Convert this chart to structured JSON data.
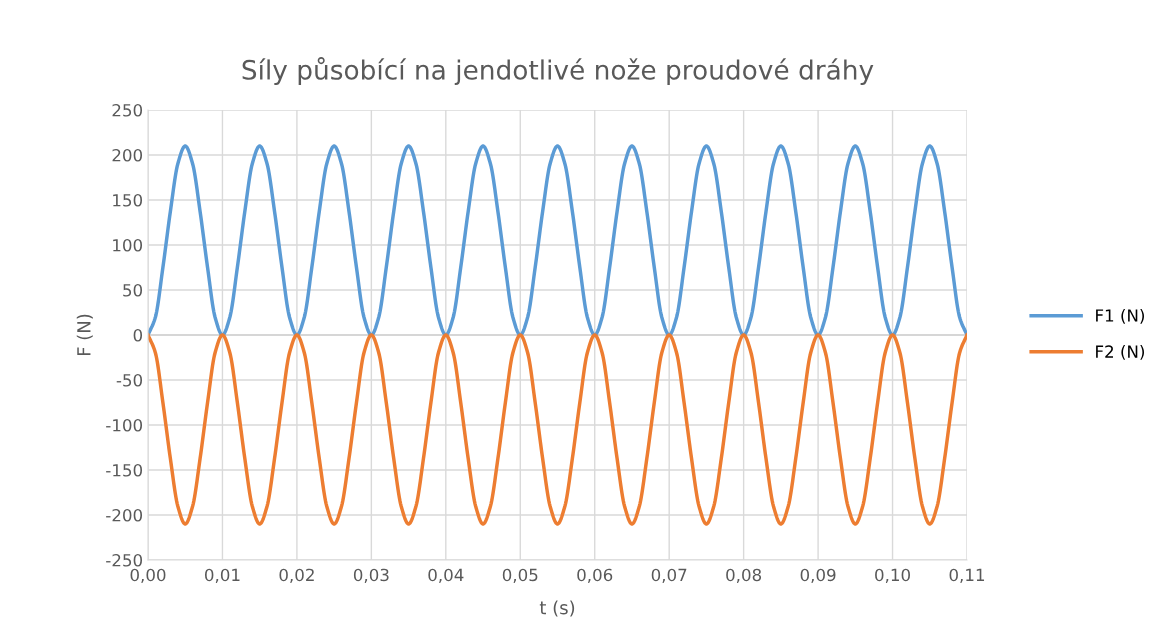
{
  "chart_data": {
    "type": "line",
    "title": "Síly působící na jendotlivé nože proudové dráhy",
    "xlabel": "t (s)",
    "ylabel": "F (N)",
    "x": [
      0,
      0.001,
      0.002,
      0.003,
      0.004,
      0.005,
      0.006,
      0.007,
      0.008,
      0.009,
      0.01,
      0.011,
      0.012,
      0.013,
      0.014,
      0.015,
      0.016,
      0.017,
      0.018,
      0.019,
      0.02,
      0.021,
      0.022,
      0.023,
      0.024,
      0.025,
      0.026,
      0.027,
      0.028,
      0.029,
      0.03,
      0.031,
      0.032,
      0.033,
      0.034,
      0.035,
      0.036,
      0.037,
      0.038,
      0.039,
      0.04,
      0.041,
      0.042,
      0.043,
      0.044,
      0.045,
      0.046,
      0.047,
      0.048,
      0.049,
      0.05,
      0.051,
      0.052,
      0.053,
      0.054,
      0.055,
      0.056,
      0.057,
      0.058,
      0.059,
      0.06,
      0.061,
      0.062,
      0.063,
      0.064,
      0.065,
      0.066,
      0.067,
      0.068,
      0.069,
      0.07,
      0.071,
      0.072,
      0.073,
      0.074,
      0.075,
      0.076,
      0.077,
      0.078,
      0.079,
      0.08,
      0.081,
      0.082,
      0.083,
      0.084,
      0.085,
      0.086,
      0.087,
      0.088,
      0.089,
      0.09,
      0.091,
      0.092,
      0.093,
      0.094,
      0.095,
      0.096,
      0.097,
      0.098,
      0.099,
      0.1,
      0.101,
      0.102,
      0.103,
      0.104,
      0.105,
      0.106,
      0.107,
      0.108,
      0.109,
      0.11
    ],
    "series": [
      {
        "name": "F1 (N)",
        "color": "#5b9bd5",
        "values": [
          0,
          20,
          75,
          137,
          190,
          210,
          190,
          137,
          75,
          20,
          0,
          20,
          75,
          137,
          190,
          210,
          190,
          137,
          75,
          20,
          0,
          20,
          75,
          137,
          190,
          210,
          190,
          137,
          75,
          20,
          0,
          20,
          75,
          137,
          190,
          210,
          190,
          137,
          75,
          20,
          0,
          20,
          75,
          137,
          190,
          210,
          190,
          137,
          75,
          20,
          0,
          20,
          75,
          137,
          190,
          210,
          190,
          137,
          75,
          20,
          0,
          20,
          75,
          137,
          190,
          210,
          190,
          137,
          75,
          20,
          0,
          20,
          75,
          137,
          190,
          210,
          190,
          137,
          75,
          20,
          0,
          20,
          75,
          137,
          190,
          210,
          190,
          137,
          75,
          20,
          0,
          20,
          75,
          137,
          190,
          210,
          190,
          137,
          75,
          20,
          0,
          20,
          75,
          137,
          190,
          210,
          190,
          137,
          75,
          20,
          0
        ]
      },
      {
        "name": "F2 (N)",
        "color": "#ed7d31",
        "values": [
          0,
          -20,
          -75,
          -137,
          -190,
          -210,
          -190,
          -137,
          -75,
          -20,
          0,
          -20,
          -75,
          -137,
          -190,
          -210,
          -190,
          -137,
          -75,
          -20,
          0,
          -20,
          -75,
          -137,
          -190,
          -210,
          -190,
          -137,
          -75,
          -20,
          0,
          -20,
          -75,
          -137,
          -190,
          -210,
          -190,
          -137,
          -75,
          -20,
          0,
          -20,
          -75,
          -137,
          -190,
          -210,
          -190,
          -137,
          -75,
          -20,
          0,
          -20,
          -75,
          -137,
          -190,
          -210,
          -190,
          -137,
          -75,
          -20,
          0,
          -20,
          -75,
          -137,
          -190,
          -210,
          -190,
          -137,
          -75,
          -20,
          0,
          -20,
          -75,
          -137,
          -190,
          -210,
          -190,
          -137,
          -75,
          -20,
          0,
          -20,
          -75,
          -137,
          -190,
          -210,
          -190,
          -137,
          -75,
          -20,
          0,
          -20,
          -75,
          -137,
          -190,
          -210,
          -190,
          -137,
          -75,
          -20,
          0,
          -20,
          -75,
          -137,
          -190,
          -210,
          -190,
          -137,
          -75,
          -20,
          0
        ]
      }
    ],
    "xlim": [
      0,
      0.11
    ],
    "xticks": [
      {
        "value": 0,
        "label": "0,00"
      },
      {
        "value": 0.01,
        "label": "0,01"
      },
      {
        "value": 0.02,
        "label": "0,02"
      },
      {
        "value": 0.03,
        "label": "0,03"
      },
      {
        "value": 0.04,
        "label": "0,04"
      },
      {
        "value": 0.05,
        "label": "0,05"
      },
      {
        "value": 0.06,
        "label": "0,06"
      },
      {
        "value": 0.07,
        "label": "0,07"
      },
      {
        "value": 0.08,
        "label": "0,08"
      },
      {
        "value": 0.09,
        "label": "0,09"
      },
      {
        "value": 0.1,
        "label": "0,10"
      },
      {
        "value": 0.11,
        "label": "0,11"
      }
    ],
    "ylim": [
      -250,
      250
    ],
    "yticks": [
      -250,
      -200,
      -150,
      -100,
      -50,
      0,
      50,
      100,
      150,
      200,
      250
    ],
    "grid": true,
    "legend": "right",
    "marker": "none",
    "line_style": "solid"
  }
}
